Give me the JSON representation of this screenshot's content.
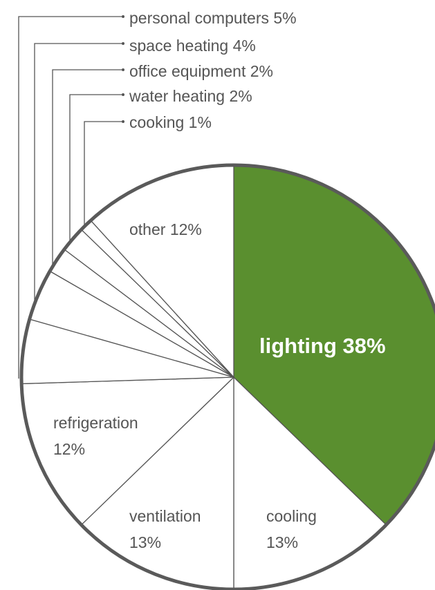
{
  "colors": {
    "highlight": "#5a8f2f",
    "slice_fill": "#ffffff",
    "line": "#555555",
    "outline": "#5a5a5a",
    "text": "#555555"
  },
  "chart_data": {
    "type": "pie",
    "title": "",
    "start": "12 o'clock",
    "direction": "clockwise",
    "slices": [
      {
        "name": "lighting",
        "value": 38,
        "label": "lighting 38%",
        "highlight": true
      },
      {
        "name": "cooling",
        "value": 13,
        "label_line1": "cooling",
        "label_line2": "13%"
      },
      {
        "name": "ventilation",
        "value": 13,
        "label_line1": "ventilation",
        "label_line2": "13%"
      },
      {
        "name": "refrigeration",
        "value": 12,
        "label_line1": "refrigeration",
        "label_line2": "12%"
      },
      {
        "name": "personal computers",
        "value": 5,
        "label": "personal computers 5%",
        "callout": true
      },
      {
        "name": "space heating",
        "value": 4,
        "label": "space heating 4%",
        "callout": true
      },
      {
        "name": "office equipment",
        "value": 2,
        "label": "office equipment 2%",
        "callout": true
      },
      {
        "name": "water heating",
        "value": 2,
        "label": "water heating 2%",
        "callout": true
      },
      {
        "name": "cooking",
        "value": 1,
        "label": "cooking 1%",
        "callout": true
      },
      {
        "name": "other",
        "value": 12,
        "label": "other 12%"
      }
    ]
  }
}
